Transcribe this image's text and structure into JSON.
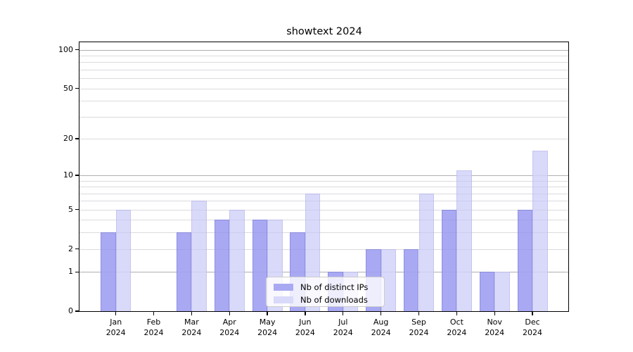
{
  "title": "showtext 2024",
  "colors": {
    "background": "#ffffff",
    "axis": "#000000",
    "text": "#000000",
    "grid_minor": "#e8e8e8",
    "grid_strong": "#b7b7b7",
    "ips_fill": "#a9a9f3",
    "ips_edge": "#8f8fe4",
    "downloads_fill": "#d9d9fa",
    "downloads_edge": "#c6c6f0"
  },
  "legend": {
    "items": [
      {
        "label": "Nb of distinct IPs"
      },
      {
        "label": "Nb of downloads"
      }
    ]
  },
  "chart_data": {
    "type": "bar",
    "title": "showtext 2024",
    "xlabel": "",
    "ylabel": "",
    "categories": [
      "Jan",
      "Feb",
      "Mar",
      "Apr",
      "May",
      "Jun",
      "Jul",
      "Aug",
      "Sep",
      "Oct",
      "Nov",
      "Dec"
    ],
    "category_year": "2024",
    "series": [
      {
        "name": "Nb of distinct IPs",
        "values": [
          3,
          0,
          3,
          4,
          4,
          3,
          1,
          2,
          2,
          5,
          1,
          5
        ],
        "fill": "#a9a9f3",
        "edge": "#8f8fe4"
      },
      {
        "name": "Nb of downloads",
        "values": [
          5,
          0,
          6,
          5,
          4,
          7,
          1,
          2,
          7,
          11,
          1,
          16
        ],
        "fill": "#d9d9fa",
        "edge": "#c6c6f0"
      }
    ],
    "yscale": "log1p",
    "yticks": [
      0,
      1,
      2,
      5,
      10,
      20,
      50,
      100
    ],
    "grid_strong_at": [
      1,
      10,
      100
    ],
    "grid_minor_at": [
      3,
      4,
      6,
      7,
      8,
      9,
      30,
      40,
      60,
      70,
      80,
      90
    ],
    "ylim": [
      0,
      114
    ],
    "grid": true,
    "legend_position": "inside-bottom-center"
  }
}
